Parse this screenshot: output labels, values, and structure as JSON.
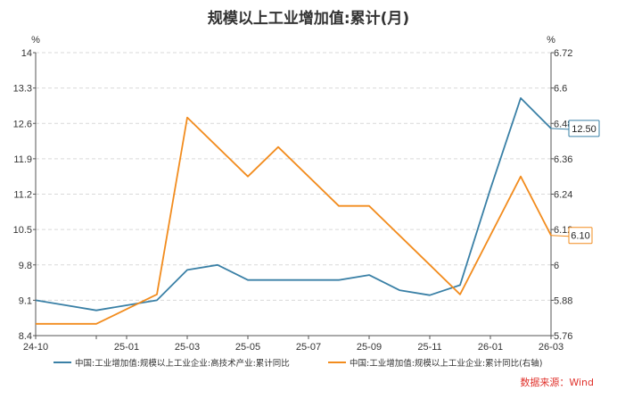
{
  "colors": {
    "high_tech": "#3a80a6",
    "industry": "#f28c1e",
    "source_text": "#e0312b",
    "grid": "#d9d9d9"
  },
  "chart_data": {
    "type": "line",
    "title": "规模以上工业增加值:累计(月)",
    "left_axis": {
      "unit": "%",
      "min": 8.4,
      "max": 14,
      "ticks": [
        "8.4",
        "9.1",
        "9.8",
        "10.5",
        "11.2",
        "11.9",
        "12.6",
        "13.3",
        "14"
      ]
    },
    "right_axis": {
      "unit": "%",
      "min": 5.76,
      "max": 6.72,
      "ticks": [
        "5.76",
        "5.88",
        "6",
        "6.12",
        "6.24",
        "6.36",
        "6.48",
        "6.6",
        "6.72"
      ]
    },
    "x": [
      "24-10",
      "24-11",
      "24-12",
      "25-01",
      "25-02",
      "25-03",
      "25-04",
      "25-05",
      "25-06",
      "25-07",
      "25-08",
      "25-09",
      "25-10",
      "25-11",
      "25-12",
      "26-01",
      "26-02",
      "26-03"
    ],
    "x_tick_labels": [
      "24-10",
      "25-01",
      "25-03",
      "25-05",
      "25-07",
      "25-09",
      "25-11",
      "26-01",
      "26-03"
    ],
    "grid": true,
    "legend_position": "bottom",
    "series": [
      {
        "name": "中国:工业增加值:规模以上工业企业:高技术产业:累计同比",
        "axis": "left",
        "color_key": "high_tech",
        "values": [
          9.1,
          9.0,
          8.9,
          9.0,
          9.1,
          9.7,
          9.8,
          9.5,
          9.5,
          9.5,
          9.5,
          9.6,
          9.3,
          9.2,
          9.4,
          11.3,
          13.1,
          12.5
        ],
        "last_label": "12.50"
      },
      {
        "name": "中国:工业增加值:规模以上工业企业:累计同比(右轴)",
        "axis": "right",
        "color_key": "industry",
        "values": [
          5.8,
          5.8,
          5.8,
          5.85,
          5.9,
          6.5,
          6.4,
          6.3,
          6.4,
          6.3,
          6.2,
          6.2,
          6.1,
          6.0,
          5.9,
          6.1,
          6.3,
          6.1
        ],
        "last_label": "6.10"
      }
    ],
    "source": "数据来源：Wind"
  }
}
